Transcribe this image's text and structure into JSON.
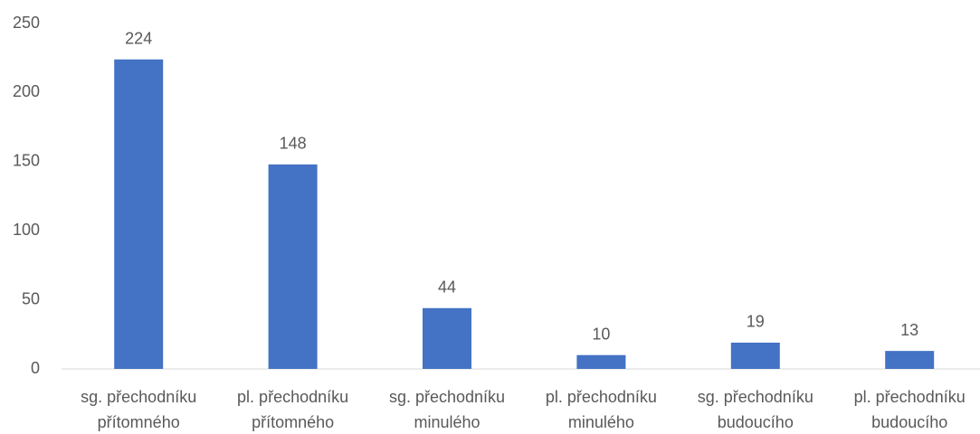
{
  "chart_data": {
    "type": "bar",
    "categories": [
      [
        "sg. přechodníku",
        "přítomného"
      ],
      [
        "pl. přechodníku",
        "přítomného"
      ],
      [
        "sg. přechodníku",
        "minulého"
      ],
      [
        "pl. přechodníku",
        "minulého"
      ],
      [
        "sg. přechodníku",
        "budoucího"
      ],
      [
        "pl. přechodníku",
        "budoucího"
      ]
    ],
    "values": [
      224,
      148,
      44,
      10,
      19,
      13
    ],
    "color": "#4472c4",
    "ylim": [
      0,
      250
    ],
    "yticks": [
      0,
      50,
      100,
      150,
      200,
      250
    ],
    "grid": false
  }
}
